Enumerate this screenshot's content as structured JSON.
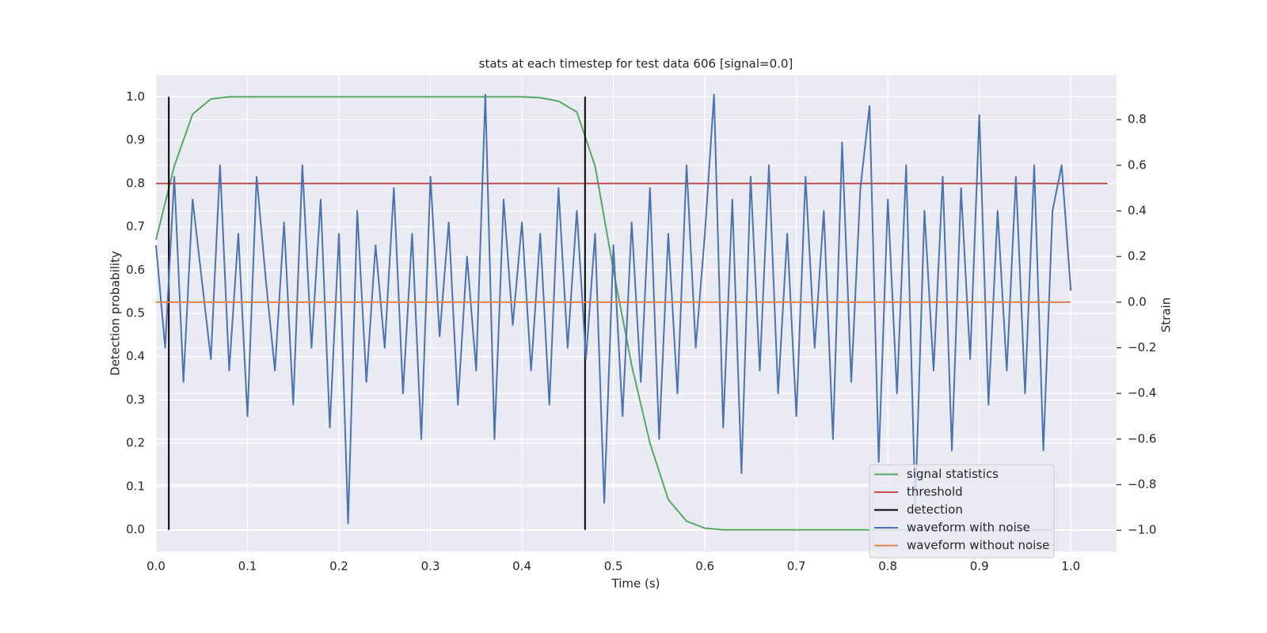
{
  "chart_data": {
    "type": "line",
    "title": "stats at each timestep for test data 606 [signal=0.0]",
    "xlabel": "Time (s)",
    "ylabel": "Detection probability",
    "y2label": "Strain",
    "xlim": [
      0,
      1.05
    ],
    "ylim": [
      -0.05,
      1.05
    ],
    "y2lim": [
      -1.093,
      0.995
    ],
    "xticks": [
      {
        "value": 0,
        "label": "0.0"
      },
      0.1,
      0.2,
      0.3,
      0.4,
      0.5,
      0.6,
      0.7,
      0.8,
      0.9,
      {
        "value": 1,
        "label": "1.0"
      }
    ],
    "yticks": [
      {
        "value": 0,
        "label": "0.0"
      },
      0.1,
      0.2,
      0.3,
      0.4,
      0.5,
      0.6,
      0.7,
      0.8,
      0.9,
      {
        "value": 1,
        "label": "1.0"
      }
    ],
    "y2ticks": [
      {
        "value": -1,
        "label": "−1.0"
      },
      {
        "value": -0.8,
        "label": "−0.8"
      },
      {
        "value": -0.6,
        "label": "−0.6"
      },
      {
        "value": -0.4,
        "label": "−0.4"
      },
      {
        "value": -0.2,
        "label": "−0.2"
      },
      {
        "value": 0,
        "label": "0.0"
      },
      0.2,
      0.4,
      0.6,
      0.8
    ],
    "grid": true,
    "legend": "lower right",
    "series": [
      {
        "name": "signal statistics",
        "color": "#55a868",
        "x": [
          0,
          0.02,
          0.04,
          0.06,
          0.08,
          0.1,
          0.12,
          0.14,
          0.16,
          0.18,
          0.2,
          0.22,
          0.24,
          0.26,
          0.28,
          0.3,
          0.32,
          0.34,
          0.36,
          0.38,
          0.4,
          0.42,
          0.44,
          0.46,
          0.48,
          0.5,
          0.52,
          0.54,
          0.56,
          0.58,
          0.6,
          0.62,
          0.64,
          0.66,
          0.68,
          0.7,
          0.72,
          0.74,
          0.76,
          0.78,
          0.8,
          0.82,
          0.84,
          0.86,
          0.88,
          0.9,
          0.92,
          0.94,
          0.96,
          0.98
        ],
        "values": [
          0.67,
          0.84,
          0.96,
          0.995,
          1,
          1,
          1,
          1,
          1,
          1,
          1,
          1,
          1,
          1,
          1,
          1,
          1,
          1,
          1,
          1,
          1,
          0.998,
          0.99,
          0.965,
          0.84,
          0.6,
          0.38,
          0.2,
          0.07,
          0.02,
          0.004,
          0,
          0,
          0,
          0,
          0,
          0,
          0,
          0,
          0,
          0,
          0,
          0,
          0,
          0,
          0,
          0,
          0,
          0,
          0
        ]
      },
      {
        "name": "threshold",
        "color": "#c44e52",
        "x": [
          0,
          1.04
        ],
        "values": [
          0.8,
          0.8
        ]
      },
      {
        "name": "detection",
        "color": "#000000",
        "style": "vline",
        "x": [
          0.014,
          0.469
        ],
        "values": [
          1,
          1
        ]
      },
      {
        "name": "waveform with noise",
        "color": "#4c72b0",
        "axis": "y2",
        "x": [
          0,
          0.01,
          0.02,
          0.03,
          0.04,
          0.05,
          0.06,
          0.07,
          0.08,
          0.09,
          0.1,
          0.11,
          0.12,
          0.13,
          0.14,
          0.15,
          0.16,
          0.17,
          0.18,
          0.19,
          0.2,
          0.21,
          0.22,
          0.23,
          0.24,
          0.25,
          0.26,
          0.27,
          0.28,
          0.29,
          0.3,
          0.31,
          0.32,
          0.33,
          0.34,
          0.35,
          0.36,
          0.37,
          0.38,
          0.39,
          0.4,
          0.41,
          0.42,
          0.43,
          0.44,
          0.45,
          0.46,
          0.47,
          0.48,
          0.49,
          0.5,
          0.51,
          0.52,
          0.53,
          0.54,
          0.55,
          0.56,
          0.57,
          0.58,
          0.59,
          0.6,
          0.61,
          0.62,
          0.63,
          0.64,
          0.65,
          0.66,
          0.67,
          0.68,
          0.69,
          0.7,
          0.71,
          0.72,
          0.73,
          0.74,
          0.75,
          0.76,
          0.77,
          0.78,
          0.79,
          0.8,
          0.81,
          0.82,
          0.83,
          0.84,
          0.85,
          0.86,
          0.87,
          0.88,
          0.89,
          0.9,
          0.91,
          0.92,
          0.93,
          0.94,
          0.95,
          0.96,
          0.97,
          0.98,
          0.99,
          1
        ],
        "values": [
          0.25,
          -0.2,
          0.55,
          -0.35,
          0.45,
          0.1,
          -0.25,
          0.6,
          -0.3,
          0.3,
          -0.5,
          0.55,
          0.1,
          -0.3,
          0.35,
          -0.45,
          0.6,
          -0.2,
          0.45,
          -0.55,
          0.3,
          -0.97,
          0.4,
          -0.35,
          0.25,
          -0.2,
          0.5,
          -0.4,
          0.3,
          -0.6,
          0.55,
          -0.15,
          0.35,
          -0.45,
          0.2,
          -0.3,
          0.91,
          -0.6,
          0.45,
          -0.1,
          0.35,
          -0.3,
          0.3,
          -0.45,
          0.5,
          -0.2,
          0.4,
          -0.25,
          0.3,
          -0.88,
          0.25,
          -0.5,
          0.35,
          -0.35,
          0.5,
          -0.6,
          0.3,
          -0.4,
          0.6,
          -0.2,
          0.3,
          0.91,
          -0.55,
          0.45,
          -0.75,
          0.55,
          -0.3,
          0.6,
          -0.4,
          0.3,
          -0.5,
          0.55,
          -0.2,
          0.4,
          -0.6,
          0.7,
          -0.35,
          0.5,
          0.86,
          -0.7,
          0.45,
          -0.4,
          0.6,
          -0.9,
          0.4,
          -0.3,
          0.55,
          -0.65,
          0.5,
          -0.25,
          0.82,
          -0.45,
          0.4,
          -0.3,
          0.55,
          -0.4,
          0.6,
          -0.65,
          0.4,
          0.6,
          0.05
        ]
      },
      {
        "name": "waveform without noise",
        "color": "#dd8452",
        "axis": "y2",
        "x": [
          0,
          1
        ],
        "values": [
          0,
          0
        ]
      }
    ]
  }
}
